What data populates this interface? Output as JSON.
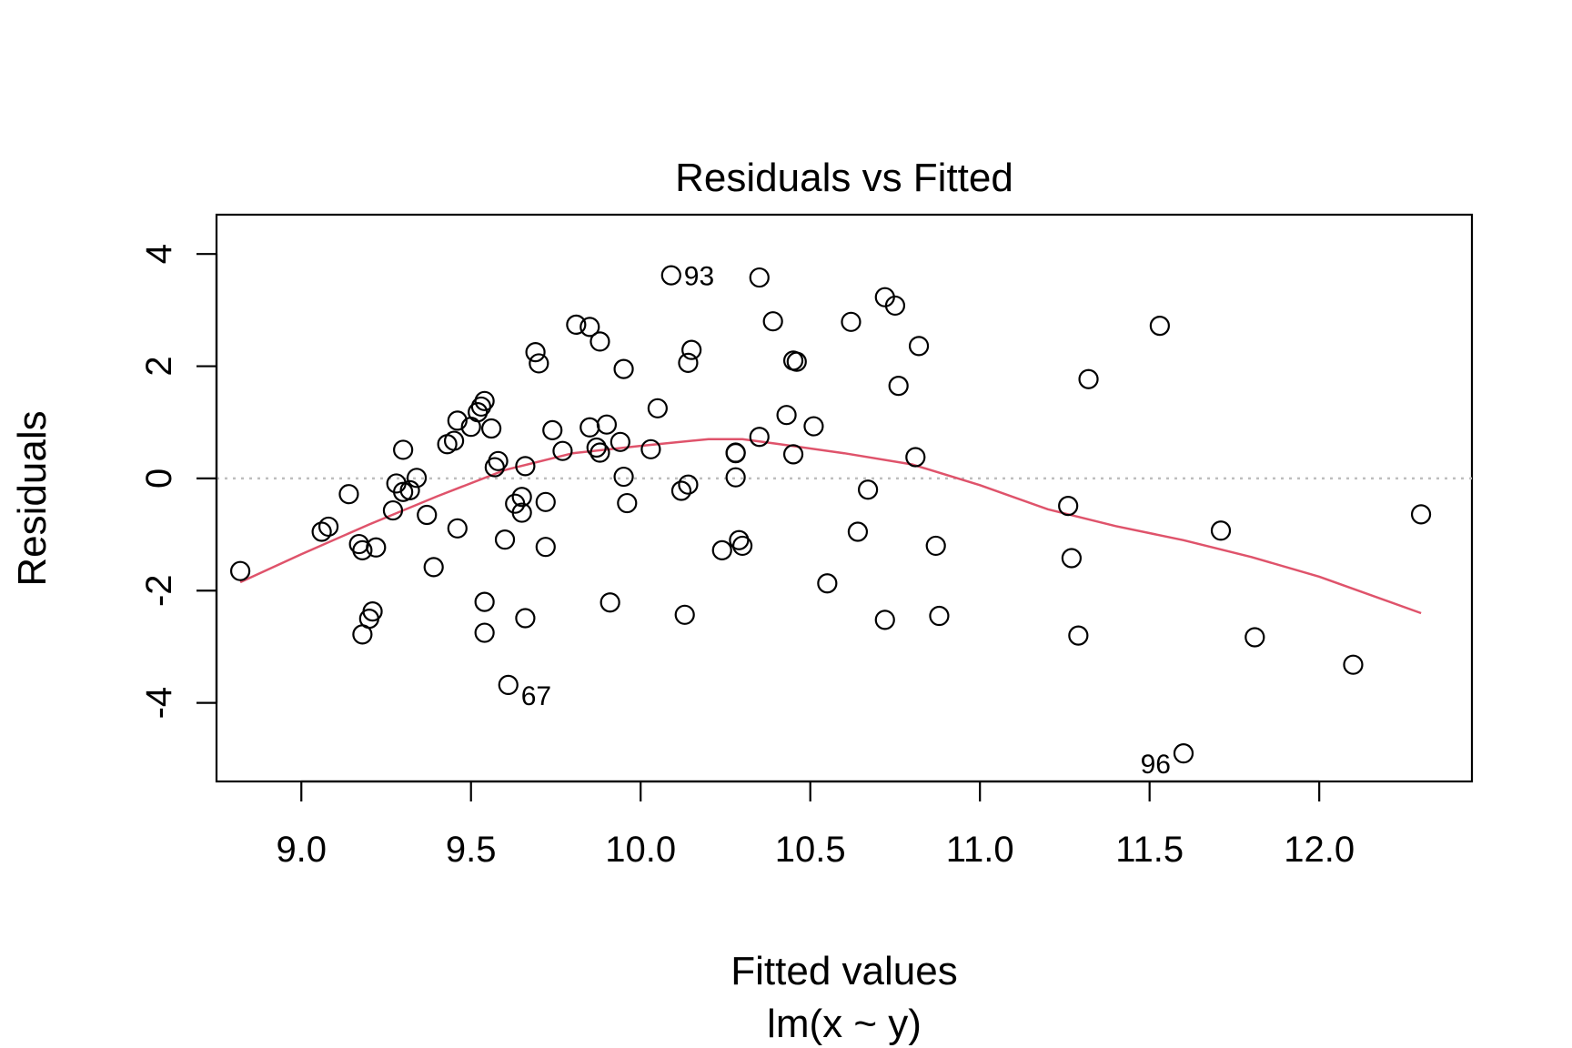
{
  "chart_data": {
    "type": "scatter",
    "title": "Residuals vs Fitted",
    "xlabel": "Fitted values",
    "subtitle": "lm(x ~ y)",
    "ylabel": "Residuals",
    "xlim": [
      8.75,
      12.45
    ],
    "ylim": [
      -5.4,
      4.7
    ],
    "x_ticks": [
      "9.0",
      "9.5",
      "10.0",
      "10.5",
      "11.0",
      "11.5",
      "12.0"
    ],
    "y_ticks": [
      "-4",
      "-2",
      "0",
      "2",
      "4"
    ],
    "reference_line": {
      "y": 0,
      "style": "dotted",
      "color": "#bebebe"
    },
    "smoother_color": "#DF536B",
    "point_style": "open-circle",
    "points": [
      [
        8.82,
        -1.65
      ],
      [
        9.06,
        -0.95
      ],
      [
        9.08,
        -0.86
      ],
      [
        9.14,
        -0.28
      ],
      [
        9.17,
        -1.17
      ],
      [
        9.18,
        -1.28
      ],
      [
        9.18,
        -2.78
      ],
      [
        9.2,
        -2.5
      ],
      [
        9.21,
        -2.37
      ],
      [
        9.22,
        -1.23
      ],
      [
        9.27,
        -0.57
      ],
      [
        9.28,
        -0.09
      ],
      [
        9.3,
        -0.24
      ],
      [
        9.3,
        0.51
      ],
      [
        9.32,
        -0.21
      ],
      [
        9.34,
        0.01
      ],
      [
        9.37,
        -0.65
      ],
      [
        9.39,
        -1.58
      ],
      [
        9.43,
        0.61
      ],
      [
        9.45,
        0.67
      ],
      [
        9.46,
        1.03
      ],
      [
        9.46,
        -0.89
      ],
      [
        9.5,
        0.92
      ],
      [
        9.52,
        1.18
      ],
      [
        9.53,
        1.28
      ],
      [
        9.54,
        1.38
      ],
      [
        9.54,
        -2.2
      ],
      [
        9.54,
        -2.75
      ],
      [
        9.56,
        0.89
      ],
      [
        9.57,
        0.2
      ],
      [
        9.58,
        0.31
      ],
      [
        9.6,
        -1.09
      ],
      [
        9.61,
        -3.68
      ],
      [
        9.63,
        -0.45
      ],
      [
        9.65,
        -0.61
      ],
      [
        9.65,
        -0.33
      ],
      [
        9.66,
        0.22
      ],
      [
        9.66,
        -2.49
      ],
      [
        9.69,
        2.25
      ],
      [
        9.7,
        2.05
      ],
      [
        9.72,
        -1.22
      ],
      [
        9.72,
        -0.42
      ],
      [
        9.74,
        0.86
      ],
      [
        9.77,
        0.49
      ],
      [
        9.81,
        2.74
      ],
      [
        9.85,
        2.7
      ],
      [
        9.85,
        0.91
      ],
      [
        9.87,
        0.55
      ],
      [
        9.88,
        0.46
      ],
      [
        9.88,
        2.44
      ],
      [
        9.9,
        0.96
      ],
      [
        9.91,
        -2.21
      ],
      [
        9.94,
        0.65
      ],
      [
        9.95,
        0.03
      ],
      [
        9.95,
        1.95
      ],
      [
        9.96,
        -0.44
      ],
      [
        10.03,
        0.52
      ],
      [
        10.05,
        1.25
      ],
      [
        10.09,
        3.62
      ],
      [
        10.12,
        -0.22
      ],
      [
        10.13,
        -2.43
      ],
      [
        10.14,
        -0.11
      ],
      [
        10.14,
        2.06
      ],
      [
        10.15,
        2.29
      ],
      [
        10.24,
        -1.28
      ],
      [
        10.28,
        0.45
      ],
      [
        10.28,
        0.46
      ],
      [
        10.28,
        0.02
      ],
      [
        10.29,
        -1.1
      ],
      [
        10.3,
        -1.2
      ],
      [
        10.35,
        0.74
      ],
      [
        10.35,
        3.58
      ],
      [
        10.39,
        2.8
      ],
      [
        10.43,
        1.13
      ],
      [
        10.45,
        2.1
      ],
      [
        10.45,
        0.43
      ],
      [
        10.46,
        2.08
      ],
      [
        10.51,
        0.93
      ],
      [
        10.55,
        -1.87
      ],
      [
        10.62,
        2.79
      ],
      [
        10.64,
        -0.95
      ],
      [
        10.67,
        -0.2
      ],
      [
        10.72,
        3.23
      ],
      [
        10.72,
        -2.52
      ],
      [
        10.75,
        3.08
      ],
      [
        10.76,
        1.65
      ],
      [
        10.81,
        0.38
      ],
      [
        10.82,
        2.36
      ],
      [
        10.87,
        -1.2
      ],
      [
        10.88,
        -2.45
      ],
      [
        11.26,
        -0.49
      ],
      [
        11.27,
        -1.42
      ],
      [
        11.29,
        -2.8
      ],
      [
        11.32,
        1.77
      ],
      [
        11.53,
        2.72
      ],
      [
        11.6,
        -4.9
      ],
      [
        11.71,
        -0.93
      ],
      [
        11.81,
        -2.83
      ],
      [
        12.1,
        -3.32
      ],
      [
        12.3,
        -0.64
      ]
    ],
    "labeled_points": [
      {
        "label": "93",
        "x": 10.09,
        "y": 3.62,
        "side": "right"
      },
      {
        "label": "67",
        "x": 9.61,
        "y": -3.68,
        "side": "right-below"
      },
      {
        "label": "96",
        "x": 11.6,
        "y": -4.9,
        "side": "left"
      }
    ],
    "smoother": [
      [
        8.82,
        -1.85
      ],
      [
        9.0,
        -1.35
      ],
      [
        9.2,
        -0.82
      ],
      [
        9.4,
        -0.32
      ],
      [
        9.6,
        0.15
      ],
      [
        9.8,
        0.45
      ],
      [
        10.0,
        0.58
      ],
      [
        10.2,
        0.7
      ],
      [
        10.3,
        0.7
      ],
      [
        10.4,
        0.62
      ],
      [
        10.6,
        0.45
      ],
      [
        10.8,
        0.25
      ],
      [
        11.0,
        -0.12
      ],
      [
        11.2,
        -0.55
      ],
      [
        11.4,
        -0.85
      ],
      [
        11.6,
        -1.1
      ],
      [
        11.8,
        -1.4
      ],
      [
        12.0,
        -1.75
      ],
      [
        12.3,
        -2.4
      ]
    ]
  }
}
